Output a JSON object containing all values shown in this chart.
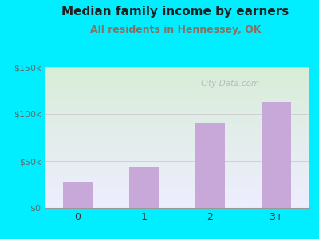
{
  "title": "Median family income by earners",
  "subtitle": "All residents in Hennessey, OK",
  "categories": [
    "0",
    "1",
    "2",
    "3+"
  ],
  "values": [
    28000,
    43000,
    90000,
    113000
  ],
  "ylim": [
    0,
    150000
  ],
  "yticks": [
    0,
    50000,
    100000,
    150000
  ],
  "ytick_labels": [
    "$0",
    "$50k",
    "$100k",
    "$150k"
  ],
  "bar_color": "#c8a8d8",
  "title_color": "#222222",
  "subtitle_color": "#8a7060",
  "outer_bg": "#00eeff",
  "plot_bg_topleft": "#d8edd8",
  "plot_bg_bottomright": "#eeeeff",
  "watermark": "City-Data.com",
  "title_fontsize": 11,
  "subtitle_fontsize": 9
}
